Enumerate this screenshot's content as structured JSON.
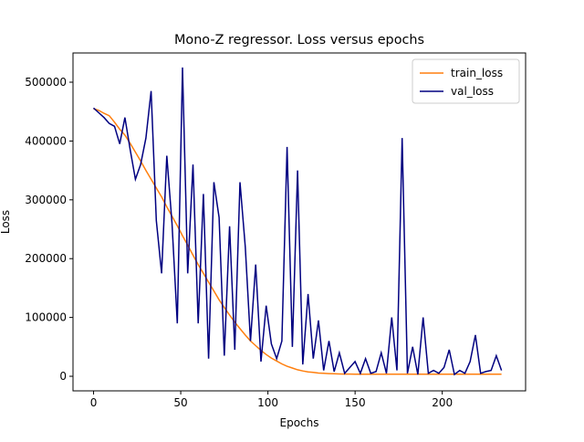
{
  "chart_data": {
    "type": "line",
    "title": "Mono-Z regressor. Loss versus epochs",
    "x_label": "Epochs",
    "y_label": "Loss",
    "x": [
      0,
      3,
      6,
      9,
      12,
      15,
      18,
      21,
      24,
      27,
      30,
      33,
      36,
      39,
      42,
      45,
      48,
      51,
      54,
      57,
      60,
      63,
      66,
      69,
      72,
      75,
      78,
      81,
      84,
      87,
      90,
      93,
      96,
      99,
      102,
      105,
      108,
      111,
      114,
      117,
      120,
      123,
      126,
      129,
      132,
      135,
      138,
      141,
      144,
      147,
      150,
      153,
      156,
      159,
      162,
      165,
      168,
      171,
      174,
      177,
      180,
      183,
      186,
      189,
      192,
      195,
      198,
      201,
      204,
      207,
      210,
      213,
      216,
      219,
      222,
      225,
      228,
      231,
      234
    ],
    "series": [
      {
        "name": "train_loss",
        "color": "#ff7f0e",
        "values": [
          455000,
          452000,
          447000,
          443000,
          432000,
          420000,
          410000,
          396000,
          381000,
          366000,
          350000,
          335000,
          320000,
          305000,
          288000,
          272000,
          256000,
          239000,
          223000,
          206000,
          190000,
          175000,
          160000,
          145000,
          130000,
          117000,
          104000,
          92000,
          81000,
          70000,
          60000,
          52000,
          44000,
          37000,
          31000,
          26000,
          21000,
          17000,
          14000,
          11000,
          9000,
          7500,
          6500,
          5500,
          5000,
          4500,
          4200,
          4000,
          3800,
          3700,
          3500,
          3500,
          3500,
          3500,
          3500,
          3500,
          3500,
          3500,
          3500,
          3500,
          3500,
          3500,
          3500,
          3500,
          3500,
          3500,
          3500,
          3500,
          3500,
          3500,
          3500,
          3500,
          3500,
          3500,
          3500,
          3500,
          3500,
          3500,
          3500
        ]
      },
      {
        "name": "val_loss",
        "color": "#000080",
        "values": [
          456000,
          448000,
          440000,
          430000,
          425000,
          395000,
          440000,
          385000,
          335000,
          360000,
          405000,
          485000,
          265000,
          175000,
          375000,
          260000,
          90000,
          525000,
          175000,
          360000,
          90000,
          310000,
          30000,
          330000,
          270000,
          35000,
          255000,
          45000,
          330000,
          220000,
          60000,
          190000,
          25000,
          120000,
          55000,
          30000,
          60000,
          390000,
          50000,
          350000,
          20000,
          140000,
          30000,
          95000,
          10000,
          60000,
          8000,
          40000,
          5000,
          15000,
          25000,
          5000,
          30000,
          5000,
          8000,
          40000,
          5000,
          100000,
          10000,
          405000,
          5000,
          50000,
          3000,
          100000,
          5000,
          10000,
          5000,
          15000,
          45000,
          3000,
          10000,
          5000,
          25000,
          70000,
          5000,
          8000,
          10000,
          35000,
          10000
        ]
      }
    ],
    "xlim": [
      -11.8,
      247.8
    ],
    "ylim": [
      -24800,
      549700
    ],
    "xticks": [
      0,
      50,
      100,
      150,
      200
    ],
    "yticks": [
      0,
      100000,
      200000,
      300000,
      400000,
      500000
    ],
    "legend": "upper right"
  }
}
